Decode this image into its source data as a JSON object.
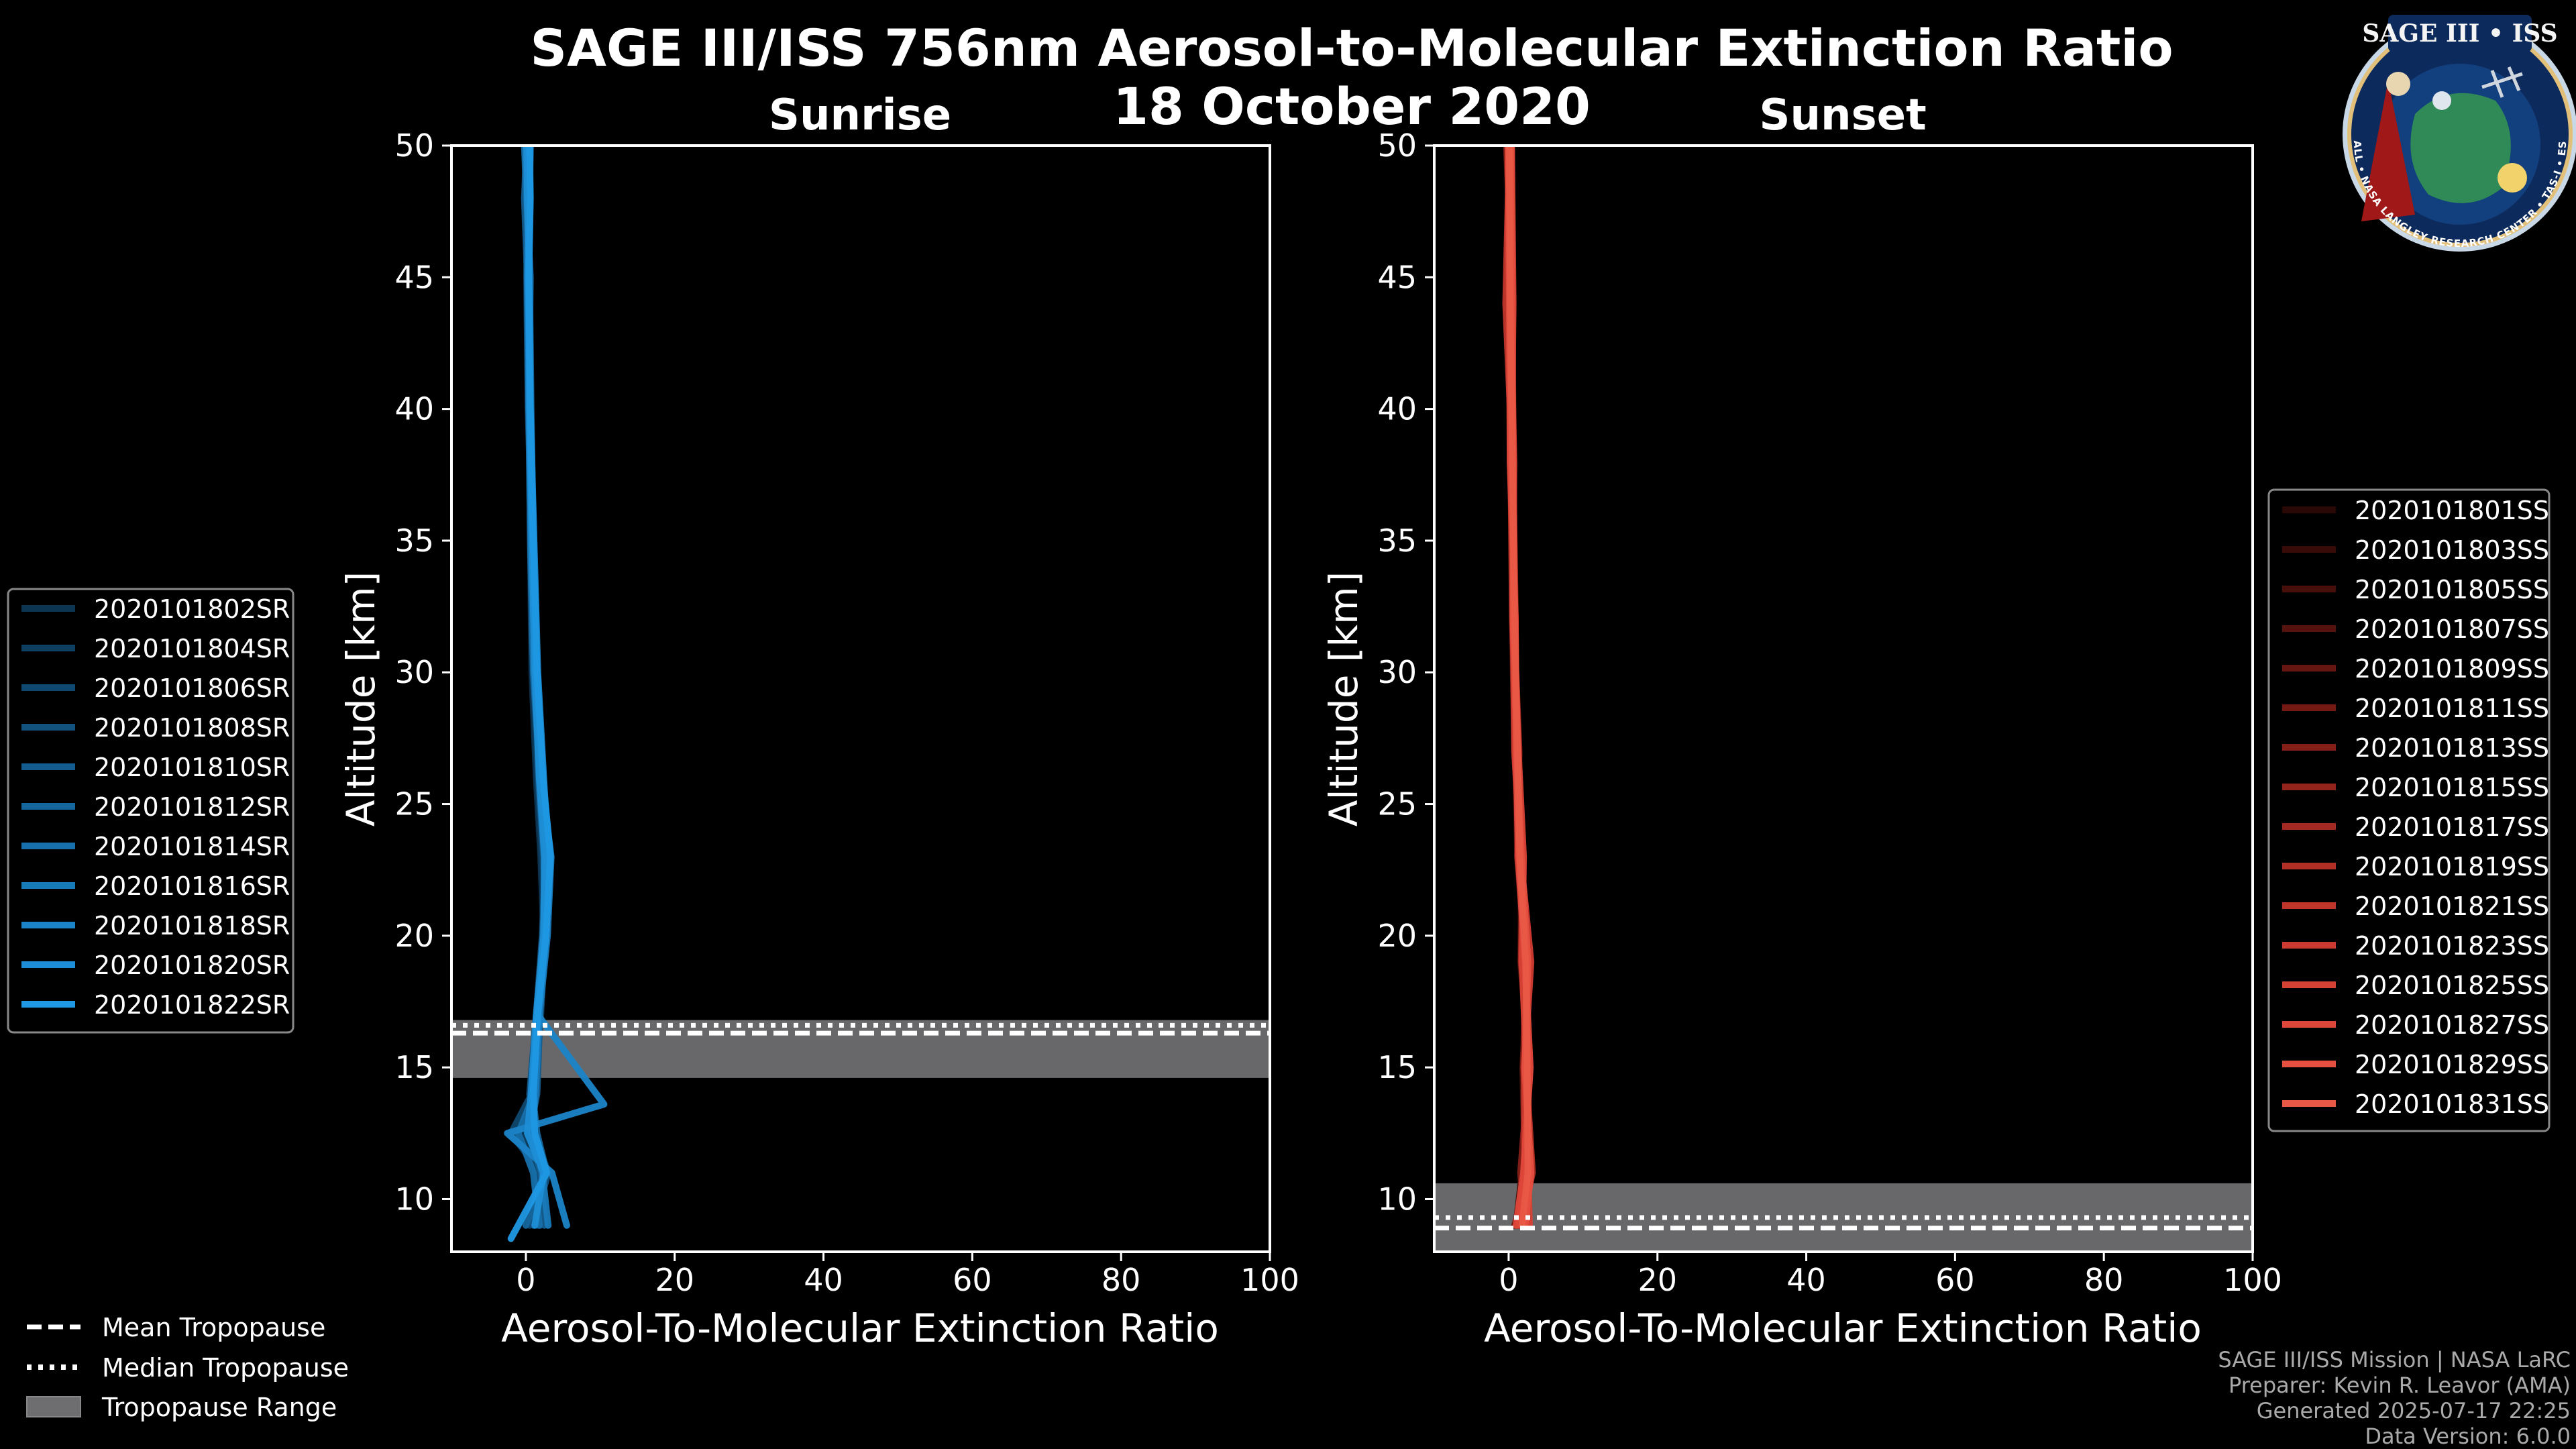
{
  "figure": {
    "title_line1": "SAGE III/ISS 756nm Aerosol-to-Molecular Extinction Ratio",
    "title_line2": "18 October 2020",
    "credits": [
      "SAGE III/ISS Mission | NASA LaRC",
      "Preparer: Kevin R. Leavor (AMA)",
      "Generated 2025-07-17 22:25",
      "Data Version: 6.0.0"
    ],
    "logo": {
      "title": "SAGE III • ISS",
      "ring_text": "BALL • NASA LANGLEY RESEARCH CENTER • TAS-I • ESA"
    },
    "tropopause_legend": {
      "mean": "Mean Tropopause",
      "median": "Median Tropopause",
      "range": "Tropopause Range"
    },
    "colors": {
      "background": "#000000",
      "sunrise": "#1f8fd6",
      "sunset": "#e04a3a",
      "tropopause_range": "#6e6e70"
    }
  },
  "chart_data": [
    {
      "type": "line",
      "panel": "sunrise",
      "title": "Sunrise",
      "xlabel": "Aerosol-To-Molecular Extinction Ratio",
      "ylabel": "Altitude [km]",
      "xlim": [
        -10,
        100
      ],
      "ylim": [
        8,
        50
      ],
      "xticks": [
        0,
        20,
        40,
        60,
        80,
        100
      ],
      "yticks": [
        10,
        15,
        20,
        25,
        30,
        35,
        40,
        45,
        50
      ],
      "legend_position": "left-center",
      "tropopause": {
        "mean": 16.3,
        "median": 16.6,
        "range": [
          14.6,
          16.8
        ]
      },
      "series": [
        {
          "name": "2020101802SR",
          "color": "#0c3552",
          "x": [
            1.5,
            2.5,
            0.5,
            1.0,
            1.8,
            2.4,
            2.0,
            1.4,
            0.8,
            0.6,
            0.4,
            0.3,
            0.4,
            0.2
          ],
          "y": [
            9,
            11,
            12.5,
            14,
            17,
            20,
            23,
            26,
            30,
            35,
            40,
            45,
            48,
            50
          ]
        },
        {
          "name": "2020101804SR",
          "color": "#0e3e60",
          "x": [
            2.0,
            1.5,
            0.0,
            1.2,
            2.0,
            2.6,
            2.2,
            1.6,
            1.0,
            0.7,
            0.5,
            0.4,
            0.5,
            0.3
          ],
          "y": [
            9,
            11,
            12.5,
            14,
            17,
            20,
            23,
            26,
            30,
            35,
            40,
            45,
            48,
            50
          ]
        },
        {
          "name": "2020101806SR",
          "color": "#10486f",
          "x": [
            0.5,
            2.0,
            -2.0,
            0.8,
            1.6,
            2.8,
            3.0,
            1.8,
            1.2,
            0.8,
            0.3,
            0.1,
            0.2,
            0.0
          ],
          "y": [
            9,
            11,
            12.5,
            14,
            17,
            20,
            23,
            26,
            30,
            35,
            40,
            45,
            48,
            50
          ]
        },
        {
          "name": "2020101808SR",
          "color": "#12527e",
          "x": [
            1.0,
            3.0,
            1.0,
            0.5,
            1.4,
            2.2,
            2.6,
            2.0,
            1.1,
            0.9,
            0.6,
            0.3,
            0.6,
            0.4
          ],
          "y": [
            9,
            11,
            12.5,
            14,
            17,
            20,
            23,
            26,
            30,
            35,
            40,
            45,
            48,
            50
          ]
        },
        {
          "name": "2020101810SR",
          "color": "#145c8d",
          "x": [
            2.5,
            2.0,
            0.5,
            1.5,
            1.9,
            2.7,
            2.4,
            1.7,
            1.3,
            0.7,
            0.5,
            0.2,
            -0.2,
            0.1
          ],
          "y": [
            9,
            11,
            12.5,
            14,
            17,
            20,
            23,
            26,
            30,
            35,
            40,
            45,
            48,
            50
          ]
        },
        {
          "name": "2020101812SR",
          "color": "#15669c",
          "x": [
            0.0,
            2.8,
            1.5,
            0.9,
            1.7,
            2.5,
            3.2,
            2.2,
            1.5,
            1.0,
            0.7,
            0.5,
            0.3,
            0.6
          ],
          "y": [
            9,
            11,
            12.5,
            14,
            17,
            20,
            23,
            26,
            30,
            35,
            40,
            45,
            48,
            50
          ]
        },
        {
          "name": "2020101814SR",
          "color": "#1770ab",
          "x": [
            1.8,
            1.0,
            -1.0,
            1.1,
            1.5,
            2.3,
            2.8,
            1.9,
            1.0,
            0.6,
            0.4,
            0.6,
            0.1,
            -0.2
          ],
          "y": [
            9,
            11,
            12.5,
            14,
            17,
            20,
            23,
            26,
            30,
            35,
            40,
            45,
            48,
            50
          ]
        },
        {
          "name": "2020101816SR",
          "color": "#197aba",
          "x": [
            3.0,
            2.2,
            0.8,
            1.3,
            1.8,
            2.9,
            3.4,
            2.1,
            1.4,
            0.9,
            0.4,
            0.2,
            0.4,
            0.3
          ],
          "y": [
            9,
            11,
            12.5,
            14,
            17,
            20,
            23,
            26,
            30,
            35,
            40,
            45,
            48,
            50
          ]
        },
        {
          "name": "2020101818SR",
          "color": "#1b84c8",
          "x": [
            5.5,
            3.5,
            -2.5,
            10.5,
            1.6,
            2.6,
            3.0,
            2.4,
            1.6,
            1.1,
            0.6,
            0.3,
            0.5,
            0.6
          ],
          "y": [
            9,
            11,
            12.5,
            13.6,
            17,
            20,
            23,
            26,
            30,
            35,
            40,
            45,
            48,
            50
          ]
        },
        {
          "name": "2020101820SR",
          "color": "#1d8ed6",
          "x": [
            1.2,
            2.4,
            0.2,
            0.7,
            1.4,
            2.4,
            2.5,
            1.8,
            1.2,
            0.8,
            0.5,
            0.4,
            0.2,
            0.1
          ],
          "y": [
            9,
            11,
            12.5,
            14,
            17,
            20,
            23,
            26,
            30,
            35,
            40,
            45,
            48,
            50
          ]
        },
        {
          "name": "2020101822SR",
          "color": "#1f98e4",
          "x": [
            -2.0,
            2.8,
            1.2,
            1.0,
            1.6,
            2.7,
            3.3,
            2.3,
            1.5,
            1.0,
            0.6,
            0.4,
            0.6,
            0.5
          ],
          "y": [
            8.5,
            11,
            12.5,
            14,
            17,
            20,
            23,
            26,
            30,
            35,
            40,
            45,
            48,
            50
          ]
        }
      ]
    },
    {
      "type": "line",
      "panel": "sunset",
      "title": "Sunset",
      "xlabel": "Aerosol-To-Molecular Extinction Ratio",
      "ylabel": "Altitude [km]",
      "xlim": [
        -10,
        100
      ],
      "ylim": [
        8,
        50
      ],
      "xticks": [
        0,
        20,
        40,
        60,
        80,
        100
      ],
      "yticks": [
        10,
        15,
        20,
        25,
        30,
        35,
        40,
        45,
        50
      ],
      "legend_position": "right-center",
      "tropopause": {
        "mean": 8.9,
        "median": 9.3,
        "range": [
          8.0,
          10.6
        ]
      },
      "series": [
        {
          "name": "2020101801SS",
          "color": "#2a0806",
          "x": [
            1.5,
            2.0,
            2.4,
            1.8,
            1.5,
            1.1,
            0.8,
            0.5,
            0.3,
            0.1
          ],
          "y": [
            9,
            11,
            15,
            19,
            23,
            27,
            32,
            38,
            44,
            50
          ]
        },
        {
          "name": "2020101803SS",
          "color": "#380b08",
          "x": [
            2.0,
            2.6,
            2.0,
            2.2,
            1.2,
            0.9,
            0.7,
            0.4,
            0.5,
            0.2
          ],
          "y": [
            9,
            11,
            15,
            19,
            23,
            27,
            32,
            38,
            44,
            50
          ]
        },
        {
          "name": "2020101805SS",
          "color": "#470e0a",
          "x": [
            1.0,
            1.8,
            2.8,
            1.6,
            1.8,
            1.3,
            0.6,
            0.6,
            0.2,
            0.0
          ],
          "y": [
            9,
            11,
            15,
            19,
            23,
            27,
            32,
            38,
            44,
            50
          ]
        },
        {
          "name": "2020101807SS",
          "color": "#56120d",
          "x": [
            2.4,
            2.2,
            1.9,
            2.6,
            1.4,
            1.0,
            0.9,
            0.3,
            0.4,
            0.3
          ],
          "y": [
            9,
            11,
            15,
            19,
            23,
            27,
            32,
            38,
            44,
            50
          ]
        },
        {
          "name": "2020101809SS",
          "color": "#651610",
          "x": [
            0.8,
            3.0,
            2.5,
            1.9,
            1.6,
            0.8,
            0.5,
            0.7,
            -0.2,
            0.1
          ],
          "y": [
            9,
            11,
            15,
            19,
            23,
            27,
            32,
            38,
            44,
            50
          ]
        },
        {
          "name": "2020101811SS",
          "color": "#741a13",
          "x": [
            1.8,
            2.4,
            2.2,
            2.8,
            1.3,
            1.2,
            0.8,
            0.2,
            0.6,
            -0.3
          ],
          "y": [
            9,
            11,
            15,
            19,
            23,
            27,
            32,
            38,
            44,
            50
          ]
        },
        {
          "name": "2020101813SS",
          "color": "#841f17",
          "x": [
            2.2,
            1.6,
            2.7,
            2.0,
            1.7,
            0.9,
            0.6,
            0.5,
            0.1,
            0.4
          ],
          "y": [
            9,
            11,
            15,
            19,
            23,
            27,
            32,
            38,
            44,
            50
          ]
        },
        {
          "name": "2020101815SS",
          "color": "#93241b",
          "x": [
            1.2,
            2.8,
            2.0,
            2.4,
            1.2,
            1.4,
            0.7,
            0.4,
            0.3,
            0.2
          ],
          "y": [
            9,
            11,
            15,
            19,
            23,
            27,
            32,
            38,
            44,
            50
          ]
        },
        {
          "name": "2020101817SS",
          "color": "#a22a20",
          "x": [
            2.6,
            2.0,
            2.9,
            1.7,
            1.9,
            1.0,
            0.9,
            0.6,
            0.5,
            0.0
          ],
          "y": [
            9,
            11,
            15,
            19,
            23,
            27,
            32,
            38,
            44,
            50
          ]
        },
        {
          "name": "2020101819SS",
          "color": "#b12f25",
          "x": [
            1.6,
            3.2,
            2.3,
            2.1,
            1.5,
            1.1,
            0.5,
            0.3,
            0.2,
            0.3
          ],
          "y": [
            9,
            11,
            15,
            19,
            23,
            27,
            32,
            38,
            44,
            50
          ]
        },
        {
          "name": "2020101821SS",
          "color": "#bf352a",
          "x": [
            2.0,
            2.4,
            2.6,
            2.5,
            1.4,
            1.2,
            0.8,
            0.5,
            -0.4,
            0.1
          ],
          "y": [
            9,
            11,
            15,
            19,
            23,
            27,
            32,
            38,
            44,
            50
          ]
        },
        {
          "name": "2020101823SS",
          "color": "#cc3b30",
          "x": [
            1.4,
            2.2,
            2.1,
            3.0,
            1.6,
            0.8,
            0.6,
            0.7,
            0.3,
            0.2
          ],
          "y": [
            9,
            11,
            15,
            19,
            23,
            27,
            32,
            38,
            44,
            50
          ]
        },
        {
          "name": "2020101825SS",
          "color": "#d64135",
          "x": [
            2.8,
            2.6,
            2.4,
            1.8,
            2.0,
            1.3,
            0.7,
            0.4,
            0.6,
            0.4
          ],
          "y": [
            9,
            11,
            15,
            19,
            23,
            27,
            32,
            38,
            44,
            50
          ]
        },
        {
          "name": "2020101827SS",
          "color": "#de473a",
          "x": [
            1.0,
            2.0,
            2.9,
            2.2,
            1.3,
            1.0,
            0.9,
            0.2,
            0.1,
            -0.1
          ],
          "y": [
            9,
            11,
            15,
            19,
            23,
            27,
            32,
            38,
            44,
            50
          ]
        },
        {
          "name": "2020101829SS",
          "color": "#e44f40",
          "x": [
            2.2,
            3.0,
            2.2,
            2.6,
            1.7,
            1.1,
            0.6,
            0.6,
            0.4,
            0.3
          ],
          "y": [
            9,
            11,
            15,
            19,
            23,
            27,
            32,
            38,
            44,
            50
          ]
        },
        {
          "name": "2020101831SS",
          "color": "#e85846",
          "x": [
            1.8,
            2.6,
            2.5,
            2.3,
            1.5,
            1.2,
            0.8,
            0.5,
            0.2,
            0.1
          ],
          "y": [
            9,
            11,
            15,
            19,
            23,
            27,
            32,
            38,
            44,
            50
          ]
        }
      ]
    }
  ]
}
